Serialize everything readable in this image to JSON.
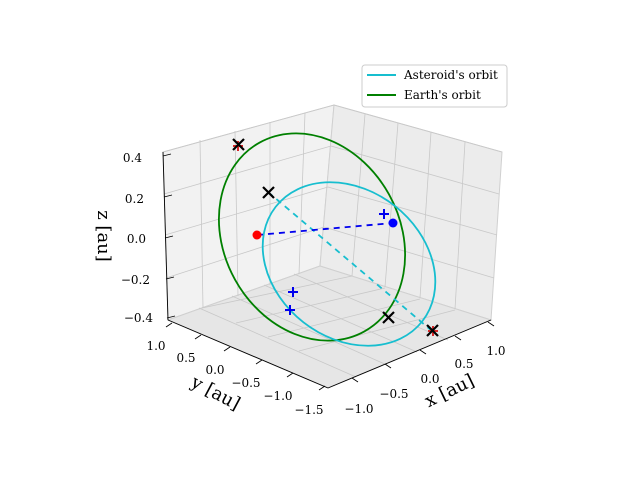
{
  "chart_data": {
    "type": "line3d",
    "projection": "3d",
    "series": [
      {
        "name": "Asteroid's orbit",
        "color": "#17becf",
        "kind": "orbit"
      },
      {
        "name": "Earth's orbit",
        "color": "#008000",
        "kind": "orbit"
      }
    ],
    "axes": {
      "x": {
        "label": "x [au]",
        "ticks": [
          "−1.0",
          "−0.5",
          "0.0",
          "0.5",
          "1.0"
        ]
      },
      "y": {
        "label": "y [au]",
        "ticks": [
          "1.0",
          "0.5",
          "0.0",
          "−0.5",
          "−1.0",
          "−1.5"
        ]
      },
      "z": {
        "label": "z [au]",
        "ticks": [
          "0.4",
          "0.2",
          "0.0",
          "−0.2",
          "−0.4"
        ]
      }
    },
    "markers": {
      "red_point": {
        "color": "#ff0000",
        "shape": "circle"
      },
      "blue_point": {
        "color": "#0000ff",
        "shape": "circle"
      },
      "crossings_black_x": 4,
      "crossings_blue_plus": 3,
      "crossings_red_plus": 2
    },
    "legend_position": "top-right",
    "grid": true
  }
}
